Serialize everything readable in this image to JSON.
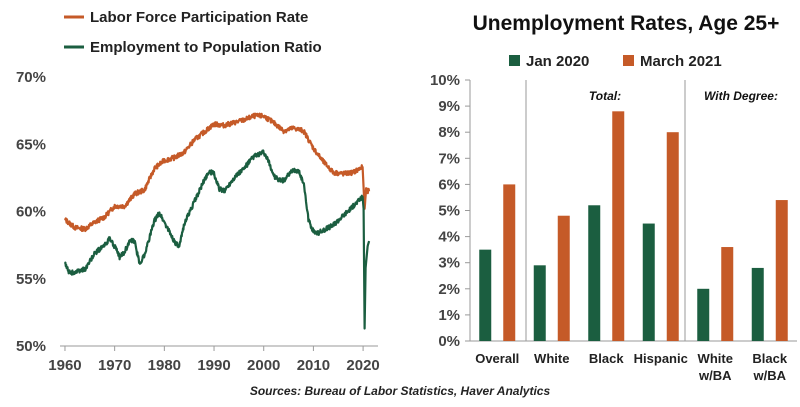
{
  "colors": {
    "orange": "#C55A28",
    "green": "#1B5E40",
    "axis": "#888888"
  },
  "chart_data": [
    {
      "type": "line",
      "title": "",
      "xlabel": "",
      "ylabel": "",
      "xlim": [
        1959,
        2023
      ],
      "ylim": [
        50,
        70
      ],
      "x_ticks": [
        "1960",
        "1970",
        "1980",
        "1990",
        "2000",
        "2010",
        "2020"
      ],
      "y_ticks": [
        "50%",
        "55%",
        "60%",
        "65%",
        "70%"
      ],
      "series": [
        {
          "name": "Labor Force Participation Rate",
          "color": "#C55A28",
          "points": [
            [
              1960,
              59.4
            ],
            [
              1962,
              58.8
            ],
            [
              1964,
              58.7
            ],
            [
              1966,
              59.2
            ],
            [
              1968,
              59.6
            ],
            [
              1970,
              60.4
            ],
            [
              1972,
              60.4
            ],
            [
              1974,
              61.3
            ],
            [
              1976,
              61.6
            ],
            [
              1978,
              63.2
            ],
            [
              1980,
              63.8
            ],
            [
              1982,
              64.0
            ],
            [
              1984,
              64.4
            ],
            [
              1986,
              65.3
            ],
            [
              1988,
              65.9
            ],
            [
              1990,
              66.5
            ],
            [
              1992,
              66.4
            ],
            [
              1994,
              66.6
            ],
            [
              1996,
              66.8
            ],
            [
              1998,
              67.1
            ],
            [
              2000,
              67.1
            ],
            [
              2002,
              66.6
            ],
            [
              2004,
              66.0
            ],
            [
              2006,
              66.2
            ],
            [
              2008,
              66.0
            ],
            [
              2010,
              64.7
            ],
            [
              2012,
              63.7
            ],
            [
              2014,
              62.9
            ],
            [
              2016,
              62.8
            ],
            [
              2018,
              62.9
            ],
            [
              2019.9,
              63.3
            ],
            [
              2020.3,
              60.2
            ],
            [
              2020.6,
              61.6
            ],
            [
              2021.2,
              61.5
            ]
          ]
        },
        {
          "name": "Employment to Population Ratio",
          "color": "#1B5E40",
          "points": [
            [
              1960,
              56.1
            ],
            [
              1961,
              55.4
            ],
            [
              1962,
              55.5
            ],
            [
              1964,
              55.7
            ],
            [
              1966,
              56.9
            ],
            [
              1968,
              57.5
            ],
            [
              1969,
              58.0
            ],
            [
              1970,
              57.4
            ],
            [
              1971,
              56.6
            ],
            [
              1972,
              57.0
            ],
            [
              1973,
              57.8
            ],
            [
              1974,
              57.8
            ],
            [
              1975,
              56.1
            ],
            [
              1976,
              56.8
            ],
            [
              1978,
              59.3
            ],
            [
              1979,
              59.9
            ],
            [
              1980,
              59.2
            ],
            [
              1982,
              57.8
            ],
            [
              1983,
              57.3
            ],
            [
              1984,
              59.1
            ],
            [
              1986,
              60.7
            ],
            [
              1988,
              62.3
            ],
            [
              1989,
              63.0
            ],
            [
              1990,
              62.8
            ],
            [
              1991,
              61.7
            ],
            [
              1992,
              61.5
            ],
            [
              1994,
              62.5
            ],
            [
              1996,
              63.2
            ],
            [
              1998,
              64.1
            ],
            [
              2000,
              64.4
            ],
            [
              2001,
              63.7
            ],
            [
              2002,
              62.7
            ],
            [
              2003,
              62.3
            ],
            [
              2004,
              62.3
            ],
            [
              2006,
              63.1
            ],
            [
              2007,
              63.0
            ],
            [
              2008,
              62.2
            ],
            [
              2009,
              59.4
            ],
            [
              2010,
              58.5
            ],
            [
              2011,
              58.4
            ],
            [
              2012,
              58.6
            ],
            [
              2014,
              59.0
            ],
            [
              2016,
              59.7
            ],
            [
              2018,
              60.4
            ],
            [
              2019.9,
              61.1
            ],
            [
              2020.1,
              60.2
            ],
            [
              2020.3,
              51.3
            ],
            [
              2020.5,
              55.8
            ],
            [
              2020.9,
              57.4
            ],
            [
              2021.2,
              57.8
            ]
          ]
        }
      ]
    },
    {
      "type": "bar",
      "title": "Unemployment Rates, Age 25+",
      "ylim": [
        0,
        10
      ],
      "y_ticks": [
        "0%",
        "1%",
        "2%",
        "3%",
        "4%",
        "5%",
        "6%",
        "7%",
        "8%",
        "9%",
        "10%"
      ],
      "categories": [
        {
          "line1": "Overall",
          "line2": ""
        },
        {
          "line1": "White",
          "line2": ""
        },
        {
          "line1": "Black",
          "line2": ""
        },
        {
          "line1": "Hispanic",
          "line2": ""
        },
        {
          "line1": "White",
          "line2": "w/BA"
        },
        {
          "line1": "Black",
          "line2": "w/BA"
        }
      ],
      "series": [
        {
          "name": "Jan 2020",
          "color": "#1B5E40",
          "values": [
            3.5,
            2.9,
            5.2,
            4.5,
            2.0,
            2.8
          ]
        },
        {
          "name": "March 2021",
          "color": "#C55A28",
          "values": [
            6.0,
            4.8,
            8.8,
            8.0,
            3.6,
            5.4
          ]
        }
      ],
      "group_labels": [
        "Total:",
        "With Degree:"
      ]
    }
  ],
  "source": "Sources: Bureau of Labor Statistics, Haver Analytics"
}
